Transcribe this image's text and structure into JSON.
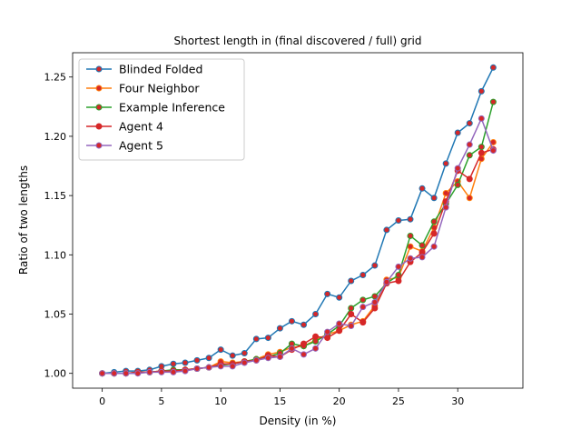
{
  "chart_data": {
    "type": "line",
    "title": "Shortest length in (final discovered / full) grid",
    "xlabel": "Density (in %)",
    "ylabel": "Ratio of two lengths",
    "xlim": [
      -2.5,
      35.5
    ],
    "ylim": [
      0.9875,
      1.2705
    ],
    "xticks": [
      0,
      5,
      10,
      15,
      20,
      25,
      30
    ],
    "xtick_labels": [
      "0",
      "5",
      "10",
      "15",
      "20",
      "25",
      "30"
    ],
    "yticks": [
      1.0,
      1.05,
      1.1,
      1.15,
      1.2,
      1.25
    ],
    "ytick_labels": [
      "1.00",
      "1.05",
      "1.10",
      "1.15",
      "1.20",
      "1.25"
    ],
    "legend_position": "top-left",
    "grid": false,
    "marker_face_color": "#d62728",
    "x": [
      0,
      1,
      2,
      3,
      4,
      5,
      6,
      7,
      8,
      9,
      10,
      11,
      12,
      13,
      14,
      15,
      16,
      17,
      18,
      19,
      20,
      21,
      22,
      23,
      24,
      25,
      26,
      27,
      28,
      29,
      30,
      31,
      32,
      33
    ],
    "series": [
      {
        "name": "Blinded Folded",
        "color": "#1f77b4",
        "values": [
          1.0,
          1.001,
          1.002,
          1.002,
          1.003,
          1.006,
          1.008,
          1.009,
          1.011,
          1.013,
          1.02,
          1.015,
          1.017,
          1.029,
          1.03,
          1.038,
          1.044,
          1.041,
          1.05,
          1.067,
          1.064,
          1.078,
          1.083,
          1.091,
          1.121,
          1.129,
          1.13,
          1.156,
          1.148,
          1.177,
          1.203,
          1.211,
          1.238,
          1.258
        ]
      },
      {
        "name": "Four Neighbor",
        "color": "#ff7f0e",
        "values": [
          1.0,
          1.0,
          1.0,
          1.001,
          1.001,
          1.002,
          1.002,
          1.003,
          1.004,
          1.005,
          1.01,
          1.009,
          1.01,
          1.012,
          1.016,
          1.018,
          1.022,
          1.023,
          1.028,
          1.033,
          1.036,
          1.041,
          1.044,
          1.057,
          1.079,
          1.081,
          1.107,
          1.103,
          1.123,
          1.152,
          1.162,
          1.148,
          1.181,
          1.195
        ]
      },
      {
        "name": "Example Inference",
        "color": "#2ca02c",
        "values": [
          1.0,
          1.0,
          1.0,
          1.001,
          1.001,
          1.002,
          1.003,
          1.003,
          1.004,
          1.005,
          1.007,
          1.008,
          1.01,
          1.012,
          1.014,
          1.017,
          1.025,
          1.023,
          1.027,
          1.033,
          1.04,
          1.055,
          1.062,
          1.065,
          1.076,
          1.083,
          1.116,
          1.108,
          1.128,
          1.143,
          1.159,
          1.184,
          1.191,
          1.229
        ]
      },
      {
        "name": "Agent 4",
        "color": "#d62728",
        "values": [
          1.0,
          1.0,
          1.0,
          1.001,
          1.001,
          1.002,
          1.002,
          1.003,
          1.004,
          1.005,
          1.008,
          1.008,
          1.01,
          1.011,
          1.015,
          1.014,
          1.02,
          1.025,
          1.031,
          1.03,
          1.036,
          1.05,
          1.043,
          1.055,
          1.076,
          1.078,
          1.094,
          1.102,
          1.118,
          1.145,
          1.171,
          1.164,
          1.186,
          1.189
        ]
      },
      {
        "name": "Agent 5",
        "color": "#9467bd",
        "values": [
          1.0,
          1.0,
          1.0,
          1.0,
          1.001,
          1.001,
          1.001,
          1.002,
          1.004,
          1.005,
          1.006,
          1.006,
          1.009,
          1.011,
          1.013,
          1.014,
          1.021,
          1.016,
          1.021,
          1.035,
          1.042,
          1.04,
          1.056,
          1.06,
          1.077,
          1.09,
          1.097,
          1.098,
          1.107,
          1.14,
          1.173,
          1.193,
          1.215,
          1.188
        ]
      }
    ]
  }
}
